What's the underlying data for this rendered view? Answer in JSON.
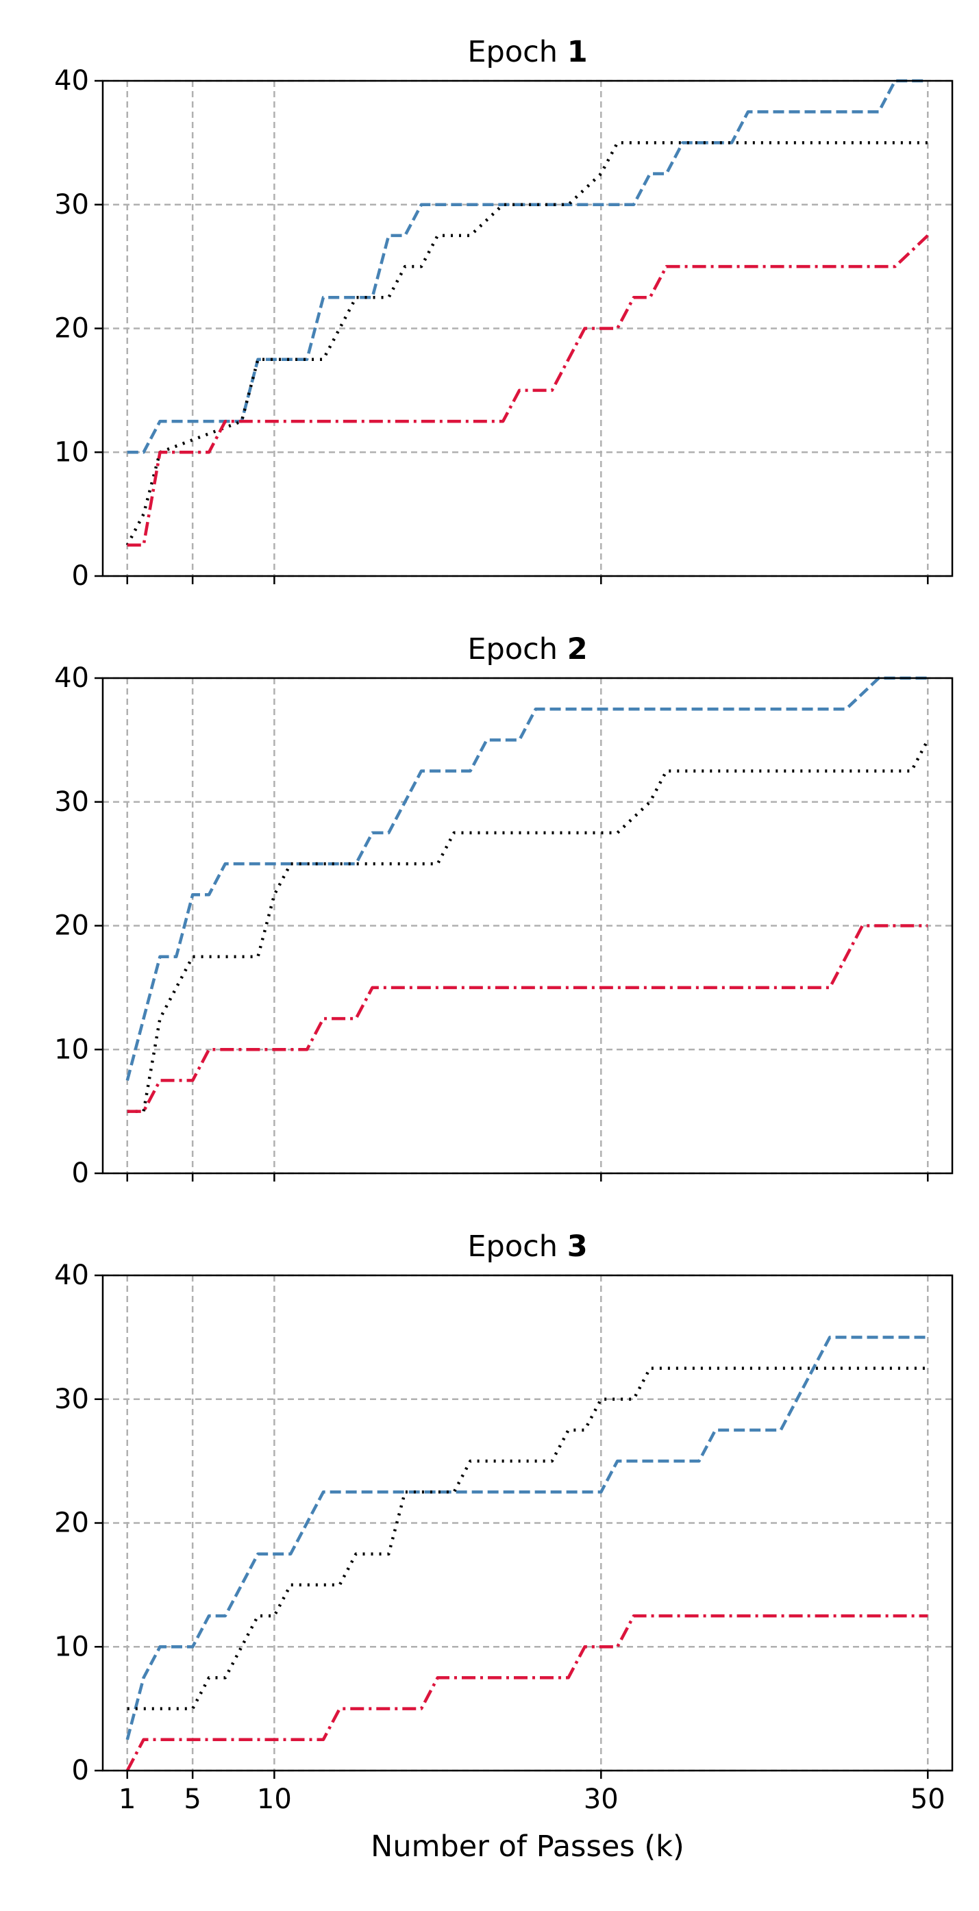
{
  "chart_data": [
    {
      "type": "line",
      "title_prefix": "Epoch",
      "title_number": "1",
      "xlabel": "",
      "ylabel": "",
      "xlim": [
        -0.5,
        51.5
      ],
      "ylim": [
        0,
        40
      ],
      "xticks": [
        1,
        5,
        10,
        30,
        50
      ],
      "show_xtick_labels": false,
      "yticks": [
        0,
        10,
        20,
        30,
        40
      ],
      "grid": true,
      "series": [
        {
          "color": "#4682B4",
          "dash": "dashed",
          "points": [
            [
              1,
              10
            ],
            [
              2,
              10
            ],
            [
              3,
              12.5
            ],
            [
              8,
              12.5
            ],
            [
              9,
              17.5
            ],
            [
              12,
              17.5
            ],
            [
              13,
              22.5
            ],
            [
              16,
              22.5
            ],
            [
              17,
              27.5
            ],
            [
              18,
              27.5
            ],
            [
              19,
              30
            ],
            [
              32,
              30
            ],
            [
              33,
              32.5
            ],
            [
              34,
              32.5
            ],
            [
              35,
              35
            ],
            [
              38,
              35
            ],
            [
              39,
              37.5
            ],
            [
              47,
              37.5
            ],
            [
              48,
              40
            ],
            [
              50,
              40
            ]
          ]
        },
        {
          "color": "#000000",
          "dash": "dotted",
          "points": [
            [
              1,
              2.5
            ],
            [
              2,
              5
            ],
            [
              3,
              10
            ],
            [
              8,
              12.5
            ],
            [
              9,
              17.5
            ],
            [
              13,
              17.5
            ],
            [
              14,
              20
            ],
            [
              15,
              22.5
            ],
            [
              17,
              22.5
            ],
            [
              18,
              25
            ],
            [
              19,
              25
            ],
            [
              20,
              27.5
            ],
            [
              22,
              27.5
            ],
            [
              24,
              30
            ],
            [
              28,
              30
            ],
            [
              30,
              32.5
            ],
            [
              31,
              35
            ],
            [
              50,
              35
            ]
          ]
        },
        {
          "color": "#DC143C",
          "dash": "dashdot",
          "points": [
            [
              1,
              2.5
            ],
            [
              2,
              2.5
            ],
            [
              3,
              10
            ],
            [
              6,
              10
            ],
            [
              7,
              12.5
            ],
            [
              24,
              12.5
            ],
            [
              25,
              15
            ],
            [
              27,
              15
            ],
            [
              29,
              20
            ],
            [
              31,
              20
            ],
            [
              32,
              22.5
            ],
            [
              33,
              22.5
            ],
            [
              34,
              25
            ],
            [
              48,
              25
            ],
            [
              50,
              27.5
            ]
          ]
        }
      ]
    },
    {
      "type": "line",
      "title_prefix": "Epoch",
      "title_number": "2",
      "xlabel": "",
      "ylabel": "",
      "xlim": [
        -0.5,
        51.5
      ],
      "ylim": [
        0,
        40
      ],
      "xticks": [
        1,
        5,
        10,
        30,
        50
      ],
      "show_xtick_labels": false,
      "yticks": [
        0,
        10,
        20,
        30,
        40
      ],
      "grid": true,
      "series": [
        {
          "color": "#4682B4",
          "dash": "dashed",
          "points": [
            [
              1,
              7.5
            ],
            [
              2,
              12.5
            ],
            [
              3,
              17.5
            ],
            [
              4,
              17.5
            ],
            [
              5,
              22.5
            ],
            [
              6,
              22.5
            ],
            [
              7,
              25
            ],
            [
              15,
              25
            ],
            [
              16,
              27.5
            ],
            [
              17,
              27.5
            ],
            [
              19,
              32.5
            ],
            [
              22,
              32.5
            ],
            [
              23,
              35
            ],
            [
              25,
              35
            ],
            [
              26,
              37.5
            ],
            [
              45,
              37.5
            ],
            [
              47,
              40
            ],
            [
              50,
              40
            ]
          ]
        },
        {
          "color": "#000000",
          "dash": "dotted",
          "points": [
            [
              1,
              5
            ],
            [
              2,
              5
            ],
            [
              3,
              12.5
            ],
            [
              5,
              17.5
            ],
            [
              9,
              17.5
            ],
            [
              10,
              22.5
            ],
            [
              11,
              25
            ],
            [
              20,
              25
            ],
            [
              21,
              27.5
            ],
            [
              31,
              27.5
            ],
            [
              33,
              30
            ],
            [
              34,
              32.5
            ],
            [
              49,
              32.5
            ],
            [
              50,
              35
            ]
          ]
        },
        {
          "color": "#DC143C",
          "dash": "dashdot",
          "points": [
            [
              1,
              5
            ],
            [
              2,
              5
            ],
            [
              3,
              7.5
            ],
            [
              5,
              7.5
            ],
            [
              6,
              10
            ],
            [
              12,
              10
            ],
            [
              13,
              12.5
            ],
            [
              15,
              12.5
            ],
            [
              16,
              15
            ],
            [
              44,
              15
            ],
            [
              46,
              20
            ],
            [
              50,
              20
            ]
          ]
        }
      ]
    },
    {
      "type": "line",
      "title_prefix": "Epoch",
      "title_number": "3",
      "xlabel": "Number of Passes (k)",
      "ylabel": "",
      "xlim": [
        -0.5,
        51.5
      ],
      "ylim": [
        0,
        40
      ],
      "xticks": [
        1,
        5,
        10,
        30,
        50
      ],
      "show_xtick_labels": true,
      "yticks": [
        0,
        10,
        20,
        30,
        40
      ],
      "grid": true,
      "series": [
        {
          "color": "#4682B4",
          "dash": "dashed",
          "points": [
            [
              1,
              2.5
            ],
            [
              2,
              7.5
            ],
            [
              3,
              10
            ],
            [
              5,
              10
            ],
            [
              6,
              12.5
            ],
            [
              7,
              12.5
            ],
            [
              9,
              17.5
            ],
            [
              11,
              17.5
            ],
            [
              13,
              22.5
            ],
            [
              30,
              22.5
            ],
            [
              31,
              25
            ],
            [
              36,
              25
            ],
            [
              37,
              27.5
            ],
            [
              41,
              27.5
            ],
            [
              43,
              32.5
            ],
            [
              44,
              35
            ],
            [
              50,
              35
            ]
          ]
        },
        {
          "color": "#000000",
          "dash": "dotted",
          "points": [
            [
              1,
              5
            ],
            [
              5,
              5
            ],
            [
              6,
              7.5
            ],
            [
              7,
              7.5
            ],
            [
              9,
              12.5
            ],
            [
              10,
              12.5
            ],
            [
              11,
              15
            ],
            [
              14,
              15
            ],
            [
              15,
              17.5
            ],
            [
              17,
              17.5
            ],
            [
              18,
              22.5
            ],
            [
              21,
              22.5
            ],
            [
              22,
              25
            ],
            [
              27,
              25
            ],
            [
              28,
              27.5
            ],
            [
              29,
              27.5
            ],
            [
              30,
              30
            ],
            [
              32,
              30
            ],
            [
              33,
              32.5
            ],
            [
              50,
              32.5
            ]
          ]
        },
        {
          "color": "#DC143C",
          "dash": "dashdot",
          "points": [
            [
              1,
              0
            ],
            [
              2,
              2.5
            ],
            [
              13,
              2.5
            ],
            [
              14,
              5
            ],
            [
              19,
              5
            ],
            [
              20,
              7.5
            ],
            [
              28,
              7.5
            ],
            [
              29,
              10
            ],
            [
              31,
              10
            ],
            [
              32,
              12.5
            ],
            [
              50,
              12.5
            ]
          ]
        }
      ]
    }
  ]
}
